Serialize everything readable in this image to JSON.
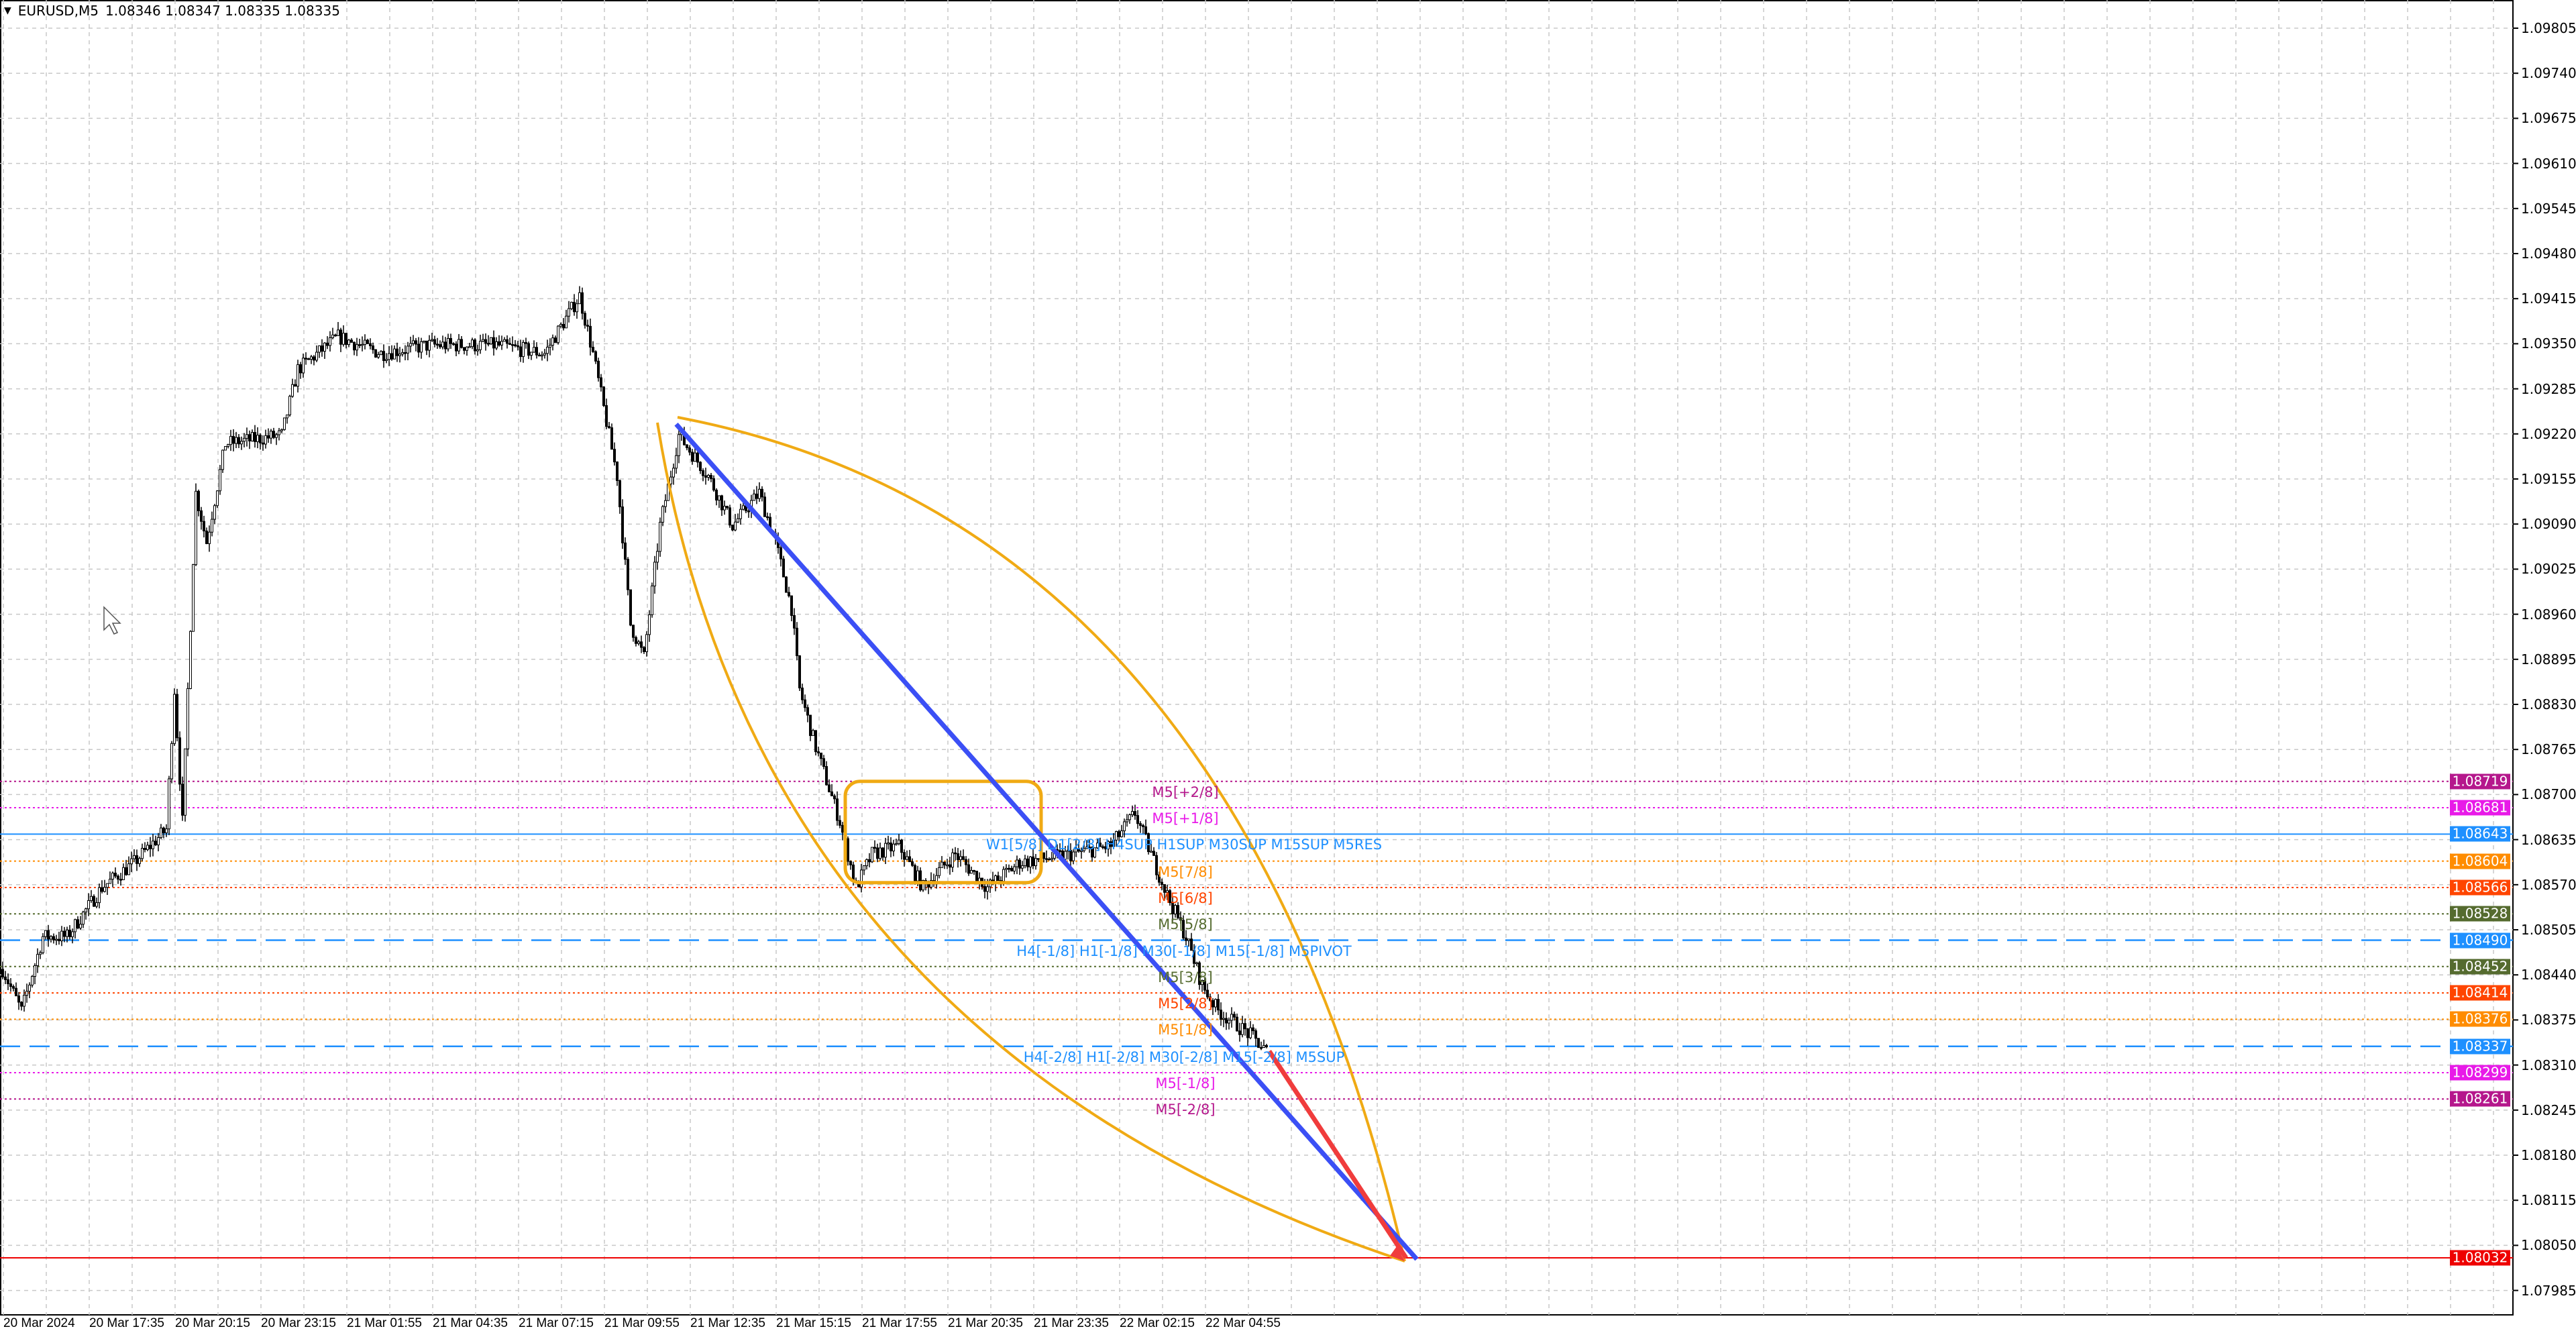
{
  "header": {
    "symbol": "EURUSD,M5",
    "ohlc": "1.08346 1.08347 1.08335 1.08335"
  },
  "colors": {
    "bull": "#000000",
    "bear": "#000000",
    "grid": "#c8c8c8",
    "trend": "#3b4ff5",
    "arrow": "#f03c3c",
    "arc": "#f0aa14",
    "bid": "#e00000"
  },
  "chart_data": {
    "type": "line",
    "title": "EURUSD,M5",
    "ylim": [
      1.0795,
      1.0985
    ],
    "grid": true,
    "y_ticks": [
      "1.09805",
      "1.09740",
      "1.09675",
      "1.09610",
      "1.09545",
      "1.09480",
      "1.09415",
      "1.09350",
      "1.09285",
      "1.09220",
      "1.09155",
      "1.09090",
      "1.09025",
      "1.08960",
      "1.08895",
      "1.08830",
      "1.08765",
      "1.08700",
      "1.08635",
      "1.08570",
      "1.08505",
      "1.08440",
      "1.08375",
      "1.08310",
      "1.08245",
      "1.08180",
      "1.08115",
      "1.08050",
      "1.07985"
    ],
    "x_ticks": [
      "20 Mar 2024",
      "20 Mar 17:35",
      "20 Mar 20:15",
      "20 Mar 23:15",
      "21 Mar 01:55",
      "21 Mar 04:35",
      "21 Mar 07:15",
      "21 Mar 09:55",
      "21 Mar 12:35",
      "21 Mar 15:15",
      "21 Mar 17:55",
      "21 Mar 20:35",
      "21 Mar 23:35",
      "22 Mar 02:15",
      "22 Mar 04:55"
    ],
    "price_path": {
      "x": [
        "20 14:55",
        "20 15:30",
        "20 16:10",
        "20 16:55",
        "20 18:00",
        "20 19:00",
        "20 20:00",
        "20 20:15",
        "20 20:30",
        "20 20:55",
        "20 21:15",
        "20 21:50",
        "20 23:35",
        "21 00:05",
        "21 01:20",
        "21 02:40",
        "21 04:10",
        "21 06:15",
        "21 07:45",
        "21 08:50",
        "21 09:15",
        "21 10:00",
        "21 10:25",
        "21 10:50",
        "21 11:20",
        "21 11:55",
        "21 12:50",
        "21 13:35",
        "21 14:25",
        "21 14:55",
        "21 15:25",
        "21 15:40",
        "21 16:10",
        "21 16:55",
        "21 17:25",
        "21 17:55",
        "21 18:45",
        "21 19:30",
        "21 20:30",
        "21 21:30",
        "21 22:30",
        "22 00:05",
        "22 01:20",
        "22 02:05",
        "22 02:35",
        "22 03:05",
        "22 03:40",
        "22 04:10",
        "22 04:40",
        "22 05:40",
        "22 06:10"
      ],
      "y": [
        1.08448,
        1.08388,
        1.08495,
        1.08495,
        1.08566,
        1.08602,
        1.0865,
        1.08851,
        1.08661,
        1.09135,
        1.09064,
        1.09206,
        1.09218,
        1.09313,
        1.0936,
        1.09336,
        1.09348,
        1.09348,
        1.09336,
        1.09419,
        1.09336,
        1.09159,
        1.08945,
        1.08898,
        1.09088,
        1.09218,
        1.09159,
        1.09088,
        1.09135,
        1.09064,
        1.08969,
        1.08851,
        1.08768,
        1.08661,
        1.08566,
        1.08614,
        1.08626,
        1.08566,
        1.08614,
        1.08566,
        1.08602,
        1.08614,
        1.08626,
        1.08673,
        1.08614,
        1.08555,
        1.08495,
        1.08425,
        1.08388,
        1.08353,
        1.0833
      ]
    },
    "levels": [
      {
        "price": 1.08719,
        "tag": "1.08719",
        "label": "M5[+2/8]",
        "color": "#b5178c",
        "style": "dotted"
      },
      {
        "price": 1.08681,
        "tag": "1.08681",
        "label": "M5[+1/8]",
        "color": "#e81ae8",
        "style": "dotted"
      },
      {
        "price": 1.08643,
        "tag": "1.08643",
        "label": "W1[5/8] D1[2/8] H4SUP H1SUP M30SUP M15SUP M5RES",
        "color": "#1e90ff",
        "style": "solid"
      },
      {
        "price": 1.08604,
        "tag": "1.08604",
        "label": "M5[7/8]",
        "color": "#ff8c00",
        "style": "dotted"
      },
      {
        "price": 1.08566,
        "tag": "1.08566",
        "label": "M5[6/8]",
        "color": "#ff4500",
        "style": "dotted"
      },
      {
        "price": 1.08528,
        "tag": "1.08528",
        "label": "M5[5/8]",
        "color": "#556b2f",
        "style": "dotted"
      },
      {
        "price": 1.0849,
        "tag": "1.08490",
        "label": "H4[-1/8] H1[-1/8] M30[-1/8] M15[-1/8] M5PIVOT",
        "color": "#1e90ff",
        "style": "dashed"
      },
      {
        "price": 1.08452,
        "tag": "1.08452",
        "label": "M5[3/8]",
        "color": "#556b2f",
        "style": "dotted"
      },
      {
        "price": 1.08414,
        "tag": "1.08414",
        "label": "M5[2/8]",
        "color": "#ff4500",
        "style": "dotted"
      },
      {
        "price": 1.08376,
        "tag": "1.08376",
        "label": "M5[1/8]",
        "color": "#ff8c00",
        "style": "dotted"
      },
      {
        "price": 1.08337,
        "tag": "1.08337",
        "label": "H4[-2/8] H1[-2/8] M30[-2/8] M15[-2/8] M5SUP",
        "color": "#1e90ff",
        "style": "dashed"
      },
      {
        "price": 1.08299,
        "tag": "1.08299",
        "label": "M5[-1/8]",
        "color": "#e81ae8",
        "style": "dotted"
      },
      {
        "price": 1.08261,
        "tag": "1.08261",
        "label": "M5[-2/8]",
        "color": "#b5178c",
        "style": "dotted"
      }
    ],
    "bid_line": {
      "price": 1.08032,
      "tag": "1.08032",
      "color": "#ee0000"
    },
    "trendline": {
      "from": [
        "21 11:50",
        1.09234
      ],
      "to": [
        "22 10:50",
        1.0803
      ]
    },
    "arrow_line": {
      "from": [
        "22 06:15",
        1.0833
      ],
      "to": [
        "22 10:30",
        1.08032
      ]
    },
    "box": {
      "from": [
        "21 17:05",
        1.08719
      ],
      "to": [
        "21 23:10",
        1.08573
      ]
    }
  }
}
